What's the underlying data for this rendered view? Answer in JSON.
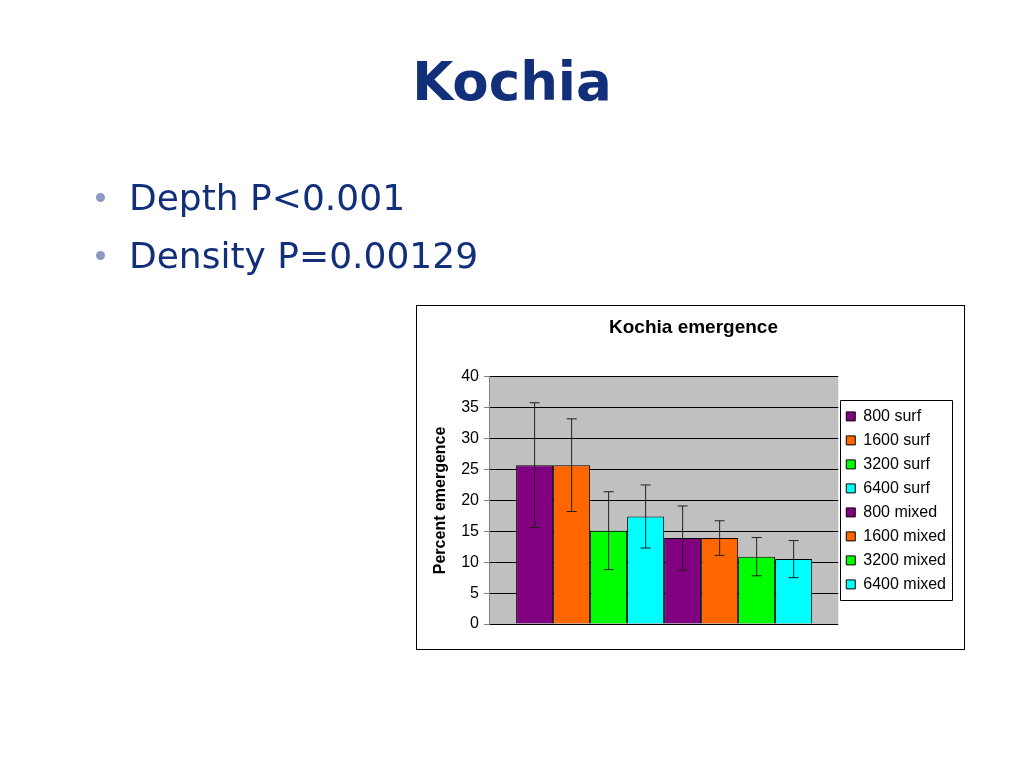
{
  "chart_data": {
    "type": "bar",
    "title": "Kochia",
    "subtitle": "Kochia emergence",
    "ylabel": "Percent emergence",
    "annotations": [
      "Depth P<0.001",
      "Density P=0.00129"
    ],
    "categories": [
      null
    ],
    "series": [
      {
        "name": "800 surf",
        "color": "#800080",
        "values": [
          25.7
        ],
        "errors": [
          10.1
        ]
      },
      {
        "name": "1600 surf",
        "color": "#ff6600",
        "values": [
          25.7
        ],
        "errors": [
          7.5
        ]
      },
      {
        "name": "3200 surf",
        "color": "#00ff00",
        "values": [
          15.1
        ],
        "errors": [
          6.3
        ]
      },
      {
        "name": "6400 surf",
        "color": "#00ffff",
        "values": [
          17.4
        ],
        "errors": [
          5.1
        ]
      },
      {
        "name": "800 mixed",
        "color": "#800080",
        "values": [
          13.9
        ],
        "errors": [
          5.2
        ]
      },
      {
        "name": "1600 mixed",
        "color": "#ff6600",
        "values": [
          13.9
        ],
        "errors": [
          2.8
        ]
      },
      {
        "name": "3200 mixed",
        "color": "#00ff00",
        "values": [
          10.9
        ],
        "errors": [
          3.1
        ]
      },
      {
        "name": "6400 mixed",
        "color": "#00ffff",
        "values": [
          10.5
        ],
        "errors": [
          3.0
        ]
      }
    ],
    "ylim": [
      0,
      40
    ],
    "yticks": [
      0,
      5,
      10,
      15,
      20,
      25,
      30,
      35,
      40
    ],
    "grid": "y",
    "legend": "right"
  }
}
